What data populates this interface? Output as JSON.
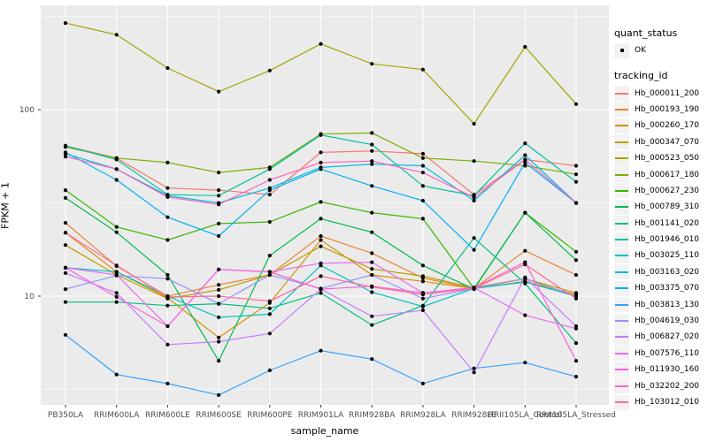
{
  "chart_data": {
    "type": "line",
    "title": "",
    "xlabel": "sample_name",
    "ylabel": "FPKM + 1",
    "y_scale": "log10",
    "y_axis_ticks": [
      "100",
      "10"
    ],
    "y_tick_values": [
      100,
      10
    ],
    "y_minor_tick_values": [
      316.2,
      31.62,
      3.162
    ],
    "ylim": [
      2.4,
      330
    ],
    "grid": true,
    "panel_bg": "#EBEBEB",
    "grid_color": "#FFFFFF",
    "point_color": "#000000",
    "axis_text_color": "#4D4D4D",
    "legend": {
      "position": "right",
      "quant_status_title": "quant_status",
      "quant_status_items": [
        {
          "label": "OK",
          "marker": "point",
          "color": "#000000"
        }
      ],
      "tracking_id_title": "tracking_id"
    },
    "categories": [
      "PB350LA",
      "RRIM600LA",
      "RRIM600LE",
      "RRIM600SE",
      "RRIM600PE",
      "RRIM901LA",
      "RRIM928BA",
      "RRIM928LA",
      "RRIM928LE",
      "RRII105LA_Control",
      "RRII105LA_Stressed"
    ],
    "series": [
      {
        "name": "Hb_000011_200",
        "color": "#F8766D",
        "values": [
          64,
          55,
          38,
          37,
          35,
          59,
          60,
          58,
          35,
          54,
          50
        ]
      },
      {
        "name": "Hb_000193_190",
        "color": "#EA8331",
        "values": [
          24.7,
          14.5,
          10,
          11.5,
          13,
          21,
          17,
          12.5,
          11,
          17.5,
          13
        ]
      },
      {
        "name": "Hb_000260_170",
        "color": "#D89000",
        "values": [
          21.9,
          13.5,
          9.8,
          6.0,
          9.2,
          20,
          13,
          12,
          11,
          12,
          10.2
        ]
      },
      {
        "name": "Hb_000347_070",
        "color": "#C09B00",
        "values": [
          18.8,
          13,
          9.7,
          10.8,
          13,
          18.5,
          14,
          12.8,
          11.1,
          12.4,
          10.4
        ]
      },
      {
        "name": "Hb_000523_050",
        "color": "#A3A500",
        "values": [
          291,
          252,
          167,
          125,
          162,
          225,
          176,
          164,
          84,
          217,
          107
        ]
      },
      {
        "name": "Hb_000617_180",
        "color": "#7CAE00",
        "values": [
          63,
          55,
          52,
          46,
          49,
          74,
          75,
          55,
          53,
          50,
          45
        ]
      },
      {
        "name": "Hb_000627_230",
        "color": "#39B600",
        "values": [
          37,
          23.5,
          20,
          24.5,
          25,
          32,
          28,
          26,
          11,
          28,
          17.3
        ]
      },
      {
        "name": "Hb_000789_310",
        "color": "#00BB4E",
        "values": [
          33.6,
          22,
          13,
          4.5,
          16.5,
          26,
          22,
          14.6,
          10.9,
          28,
          15.6
        ]
      },
      {
        "name": "Hb_001141_020",
        "color": "#00BF7D",
        "values": [
          9.3,
          9.3,
          8.9,
          9.1,
          8.6,
          10.4,
          7.0,
          8.9,
          20.5,
          11.7,
          5.6
        ]
      },
      {
        "name": "Hb_001946_010",
        "color": "#00C1A3",
        "values": [
          64,
          54,
          35,
          34.6,
          48,
          73,
          65,
          39,
          34.6,
          66,
          41
        ]
      },
      {
        "name": "Hb_003025_110",
        "color": "#00BFC4",
        "values": [
          14.2,
          13.5,
          10,
          7.7,
          8.0,
          14.6,
          10.5,
          8.8,
          11,
          11.9,
          10
        ]
      },
      {
        "name": "Hb_003163_020",
        "color": "#00BAE0",
        "values": [
          58,
          48,
          34.6,
          31.6,
          38,
          49,
          51,
          50,
          32.5,
          57,
          31.6
        ]
      },
      {
        "name": "Hb_003375_070",
        "color": "#00B0F6",
        "values": [
          59,
          42,
          26.5,
          21,
          37,
          48,
          39,
          32.5,
          17.7,
          52,
          31.6
        ]
      },
      {
        "name": "Hb_003813_130",
        "color": "#35A2FF",
        "values": [
          6.2,
          3.8,
          3.4,
          2.95,
          4.0,
          5.1,
          4.6,
          3.4,
          4.1,
          4.4,
          3.7
        ]
      },
      {
        "name": "Hb_004619_030",
        "color": "#9590FF",
        "values": [
          10.9,
          12.9,
          12.4,
          9.1,
          13,
          11,
          13,
          9.7,
          11,
          12.4,
          10
        ]
      },
      {
        "name": "Hb_006827_020",
        "color": "#C77CFF",
        "values": [
          13.3,
          10.4,
          5.5,
          5.7,
          6.3,
          10.9,
          7.8,
          8.4,
          3.9,
          12.6,
          6.9
        ]
      },
      {
        "name": "Hb_007576_110",
        "color": "#E76BF3",
        "values": [
          14.2,
          13,
          6.9,
          13.9,
          13.5,
          15,
          15.2,
          10.4,
          11.1,
          7.9,
          6.7
        ]
      },
      {
        "name": "Hb_011930_160",
        "color": "#FA62DB",
        "values": [
          14.2,
          9.9,
          6.9,
          13.9,
          13.5,
          10.9,
          11.3,
          10.4,
          11.1,
          15.2,
          4.5
        ]
      },
      {
        "name": "Hb_032202_200",
        "color": "#FF62BC",
        "values": [
          56,
          48,
          34,
          31,
          42,
          52,
          53,
          46,
          33.8,
          54,
          31.6
        ]
      },
      {
        "name": "Hb_103012_010",
        "color": "#FF6A98",
        "values": [
          21.9,
          14.6,
          9.9,
          10,
          9.4,
          12.8,
          11.2,
          10.2,
          11,
          14.8,
          9.7
        ]
      }
    ]
  }
}
